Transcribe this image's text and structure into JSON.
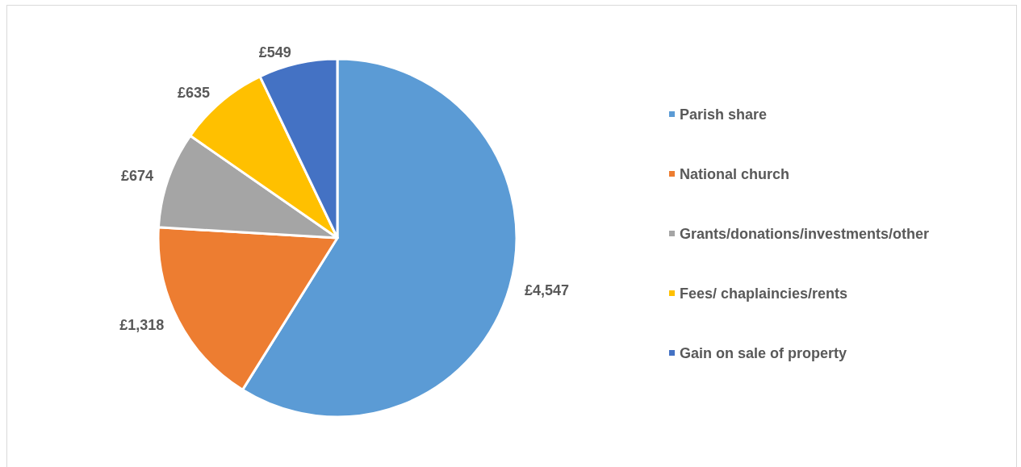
{
  "chart_data": {
    "type": "pie",
    "categories": [
      "Parish share",
      "National church",
      "Grants/donations/investments/other",
      "Fees/ chaplaincies/rents",
      "Gain on sale of property"
    ],
    "values": [
      4547,
      1318,
      674,
      635,
      549
    ],
    "colors": [
      "#5b9bd5",
      "#ed7d31",
      "#a5a5a5",
      "#ffc000",
      "#4472c4"
    ],
    "value_labels": [
      "£4,547",
      "£1,318",
      "£674",
      "£635",
      "£549"
    ],
    "legend": "right"
  }
}
